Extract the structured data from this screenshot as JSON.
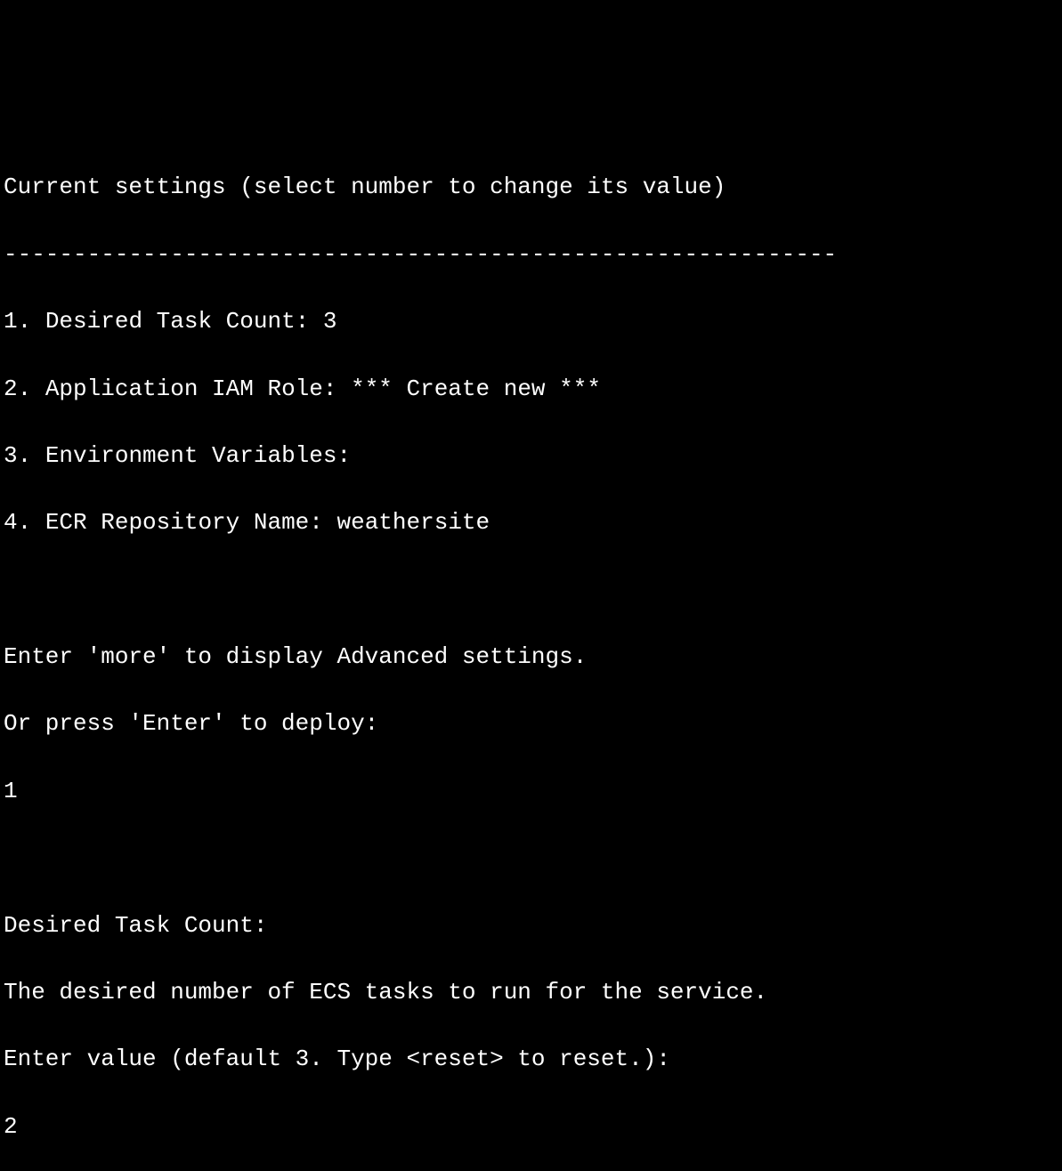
{
  "terminal": {
    "background_color": "#000000",
    "text_color": "#ffffff",
    "font_family": "Consolas",
    "font_size": 26,
    "header": "Current settings (select number to change its value)",
    "divider": "------------------------------------------------------------",
    "settings": [
      {
        "num": "1.",
        "label": "Desired Task Count:",
        "value": "3"
      },
      {
        "num": "2.",
        "label": "Application IAM Role:",
        "value": "*** Create new ***"
      },
      {
        "num": "3.",
        "label": "Environment Variables:",
        "value": ""
      },
      {
        "num": "4.",
        "label": "ECR Repository Name:",
        "value": "weathersite"
      }
    ],
    "hint_line_1": "Enter 'more' to display Advanced settings.",
    "hint_line_2": "Or press 'Enter' to deploy:",
    "user_input_1": "1",
    "prompt_title": "Desired Task Count:",
    "prompt_description": "The desired number of ECS tasks to run for the service.",
    "prompt_input_label": "Enter value (default 3. Type <reset> to reset.):",
    "user_input_2": "2"
  }
}
